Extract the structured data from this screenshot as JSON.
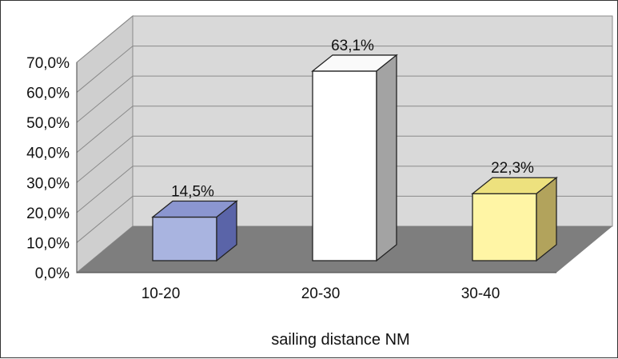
{
  "chart_data": {
    "type": "bar",
    "categories": [
      "10-20",
      "20-30",
      "30-40"
    ],
    "values": [
      14.5,
      63.1,
      22.3
    ],
    "value_labels": [
      "14,5%",
      "63,1%",
      "22,3%"
    ],
    "title": "",
    "xlabel": "sailing distance NM",
    "ylabel": "",
    "ylim": [
      0,
      70
    ],
    "yticks": [
      "0,0%",
      "10,0%",
      "20,0%",
      "30,0%",
      "40,0%",
      "50,0%",
      "60,0%",
      "70,0%"
    ],
    "grid": true,
    "legend": "none",
    "style": "3d",
    "colors": {
      "bars": [
        "#a9b4e0",
        "#ffffff",
        "#fff5a5"
      ],
      "bar_tops": [
        "#8b96d0",
        "#fafafa",
        "#ede17e"
      ],
      "bar_sides": [
        "#5a64a8",
        "#a3a3a3",
        "#b2a35c"
      ],
      "wall": "#d9d9d9",
      "floor": "#7e7e7e",
      "gridline": "#8a8a8a"
    }
  }
}
